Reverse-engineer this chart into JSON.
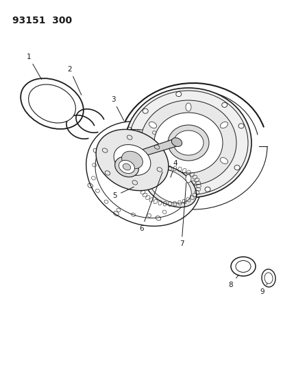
{
  "title": "93151  300",
  "bg": "#ffffff",
  "lc": "#1a1a1a",
  "fig_w": 4.14,
  "fig_h": 5.33,
  "dpi": 100
}
